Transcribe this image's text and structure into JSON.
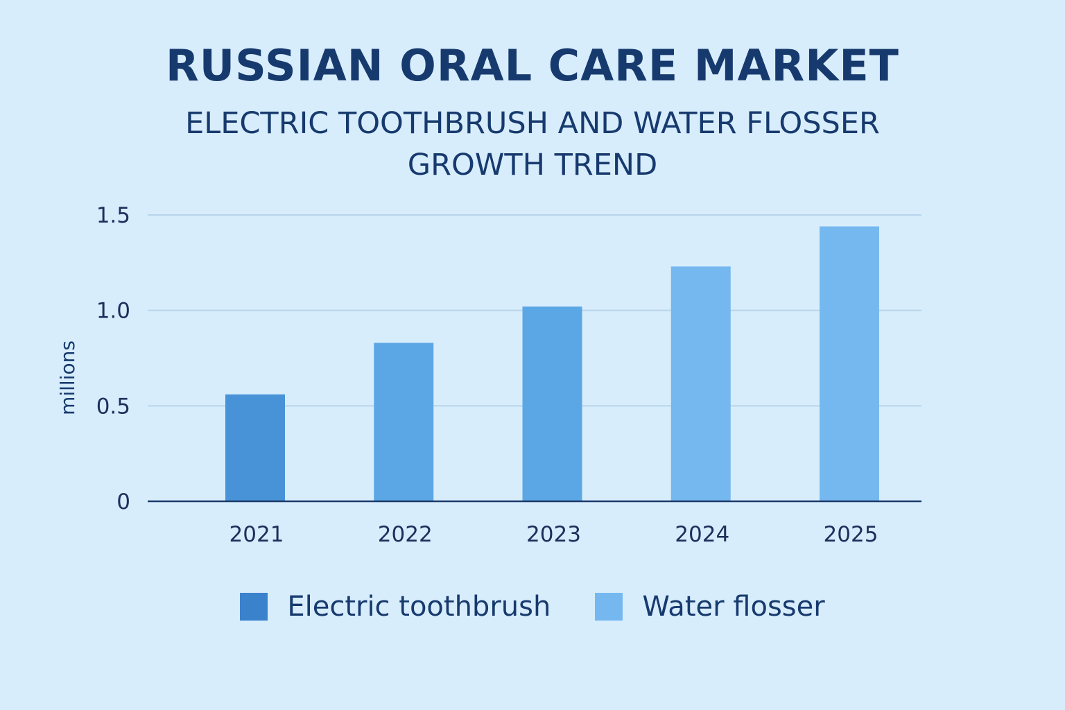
{
  "chart_data": {
    "type": "bar",
    "title": "RUSSIAN ORAL CARE MARKET",
    "subtitle": "ELECTRIC TOOTHBRUSH AND WATER FLOSSER GROWTH TREND",
    "ylabel": "millions",
    "xlabel": "",
    "ylim": [
      0,
      1.5
    ],
    "yticks": [
      "0",
      "0.5",
      "1.0",
      "1.5"
    ],
    "ytick_values": [
      0,
      0.5,
      1.0,
      1.5
    ],
    "grid": true,
    "legend_position": "bottom",
    "categories": [
      "2021",
      "2022",
      "2023",
      "2024",
      "2025"
    ],
    "values": [
      0.56,
      0.83,
      1.02,
      1.23,
      1.44
    ],
    "bar_colors": [
      "#4893d7",
      "#5ba7e5",
      "#5ba7e5",
      "#75b8f0",
      "#75b8f0"
    ],
    "legend": [
      {
        "label": "Electric toothbrush",
        "color": "#3a82cc"
      },
      {
        "label": "Water flosser",
        "color": "#75b8f0"
      }
    ]
  }
}
